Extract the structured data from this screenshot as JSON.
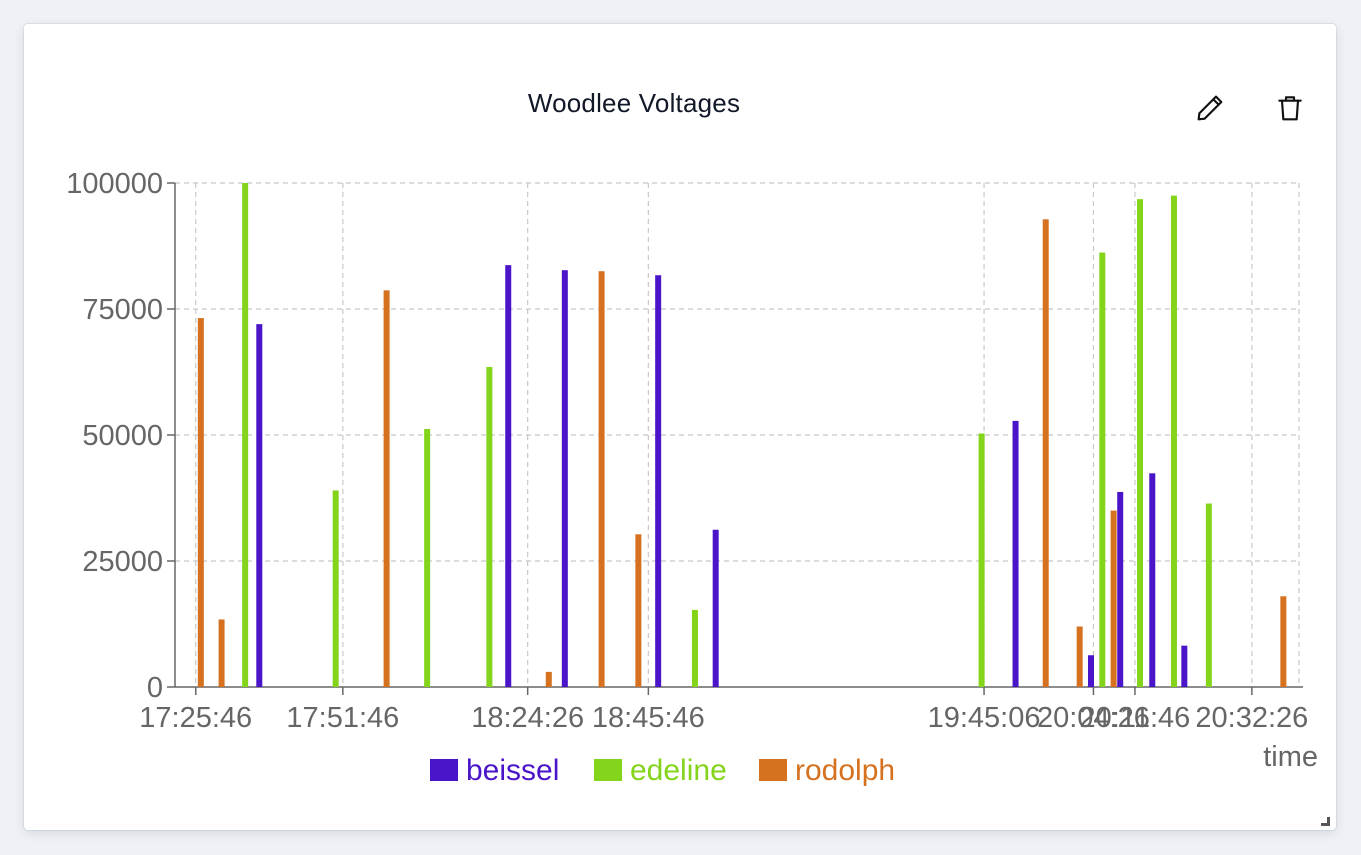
{
  "panel": {
    "title": "Woodlee Voltages",
    "edit_icon": "pencil-icon",
    "delete_icon": "trash-icon"
  },
  "chart_data": {
    "type": "bar",
    "title": "Woodlee Voltages",
    "xlabel": "time",
    "ylabel": "",
    "ylim": [
      0,
      100000
    ],
    "yticks": [
      0,
      25000,
      50000,
      75000,
      100000
    ],
    "xlim": [
      "17:22:06",
      "20:40:46"
    ],
    "xticks": [
      "17:25:46",
      "17:51:46",
      "18:24:26",
      "18:45:46",
      "19:45:06",
      "20:04:26",
      "20:11:46",
      "20:32:26"
    ],
    "grid": true,
    "legend_position": "bottom-center",
    "series": [
      {
        "name": "beissel",
        "color": "#4a14c8",
        "points": [
          {
            "x": "17:37:00",
            "y": 72000
          },
          {
            "x": "18:21:00",
            "y": 83700
          },
          {
            "x": "18:31:00",
            "y": 82700
          },
          {
            "x": "18:47:30",
            "y": 81700
          },
          {
            "x": "18:57:40",
            "y": 31200
          },
          {
            "x": "19:50:40",
            "y": 52800
          },
          {
            "x": "20:04:00",
            "y": 6300
          },
          {
            "x": "20:09:10",
            "y": 38700
          },
          {
            "x": "20:14:50",
            "y": 42400
          },
          {
            "x": "20:20:30",
            "y": 8200
          }
        ]
      },
      {
        "name": "edeline",
        "color": "#84d41c",
        "points": [
          {
            "x": "17:34:30",
            "y": 100000
          },
          {
            "x": "17:50:30",
            "y": 39000
          },
          {
            "x": "18:06:40",
            "y": 51200
          },
          {
            "x": "18:17:40",
            "y": 63500
          },
          {
            "x": "18:54:00",
            "y": 15300
          },
          {
            "x": "19:44:40",
            "y": 50300
          },
          {
            "x": "20:06:00",
            "y": 86200
          },
          {
            "x": "20:12:40",
            "y": 96800
          },
          {
            "x": "20:18:40",
            "y": 97500
          },
          {
            "x": "20:24:50",
            "y": 36400
          }
        ]
      },
      {
        "name": "rodolph",
        "color": "#d6711f",
        "points": [
          {
            "x": "17:26:40",
            "y": 73200
          },
          {
            "x": "17:30:20",
            "y": 13400
          },
          {
            "x": "17:59:30",
            "y": 78700
          },
          {
            "x": "18:28:10",
            "y": 3000
          },
          {
            "x": "18:37:30",
            "y": 82500
          },
          {
            "x": "18:44:00",
            "y": 30300
          },
          {
            "x": "19:56:00",
            "y": 92800
          },
          {
            "x": "20:02:00",
            "y": 12000
          },
          {
            "x": "20:08:00",
            "y": 35000
          },
          {
            "x": "20:38:00",
            "y": 18000
          }
        ]
      }
    ]
  }
}
